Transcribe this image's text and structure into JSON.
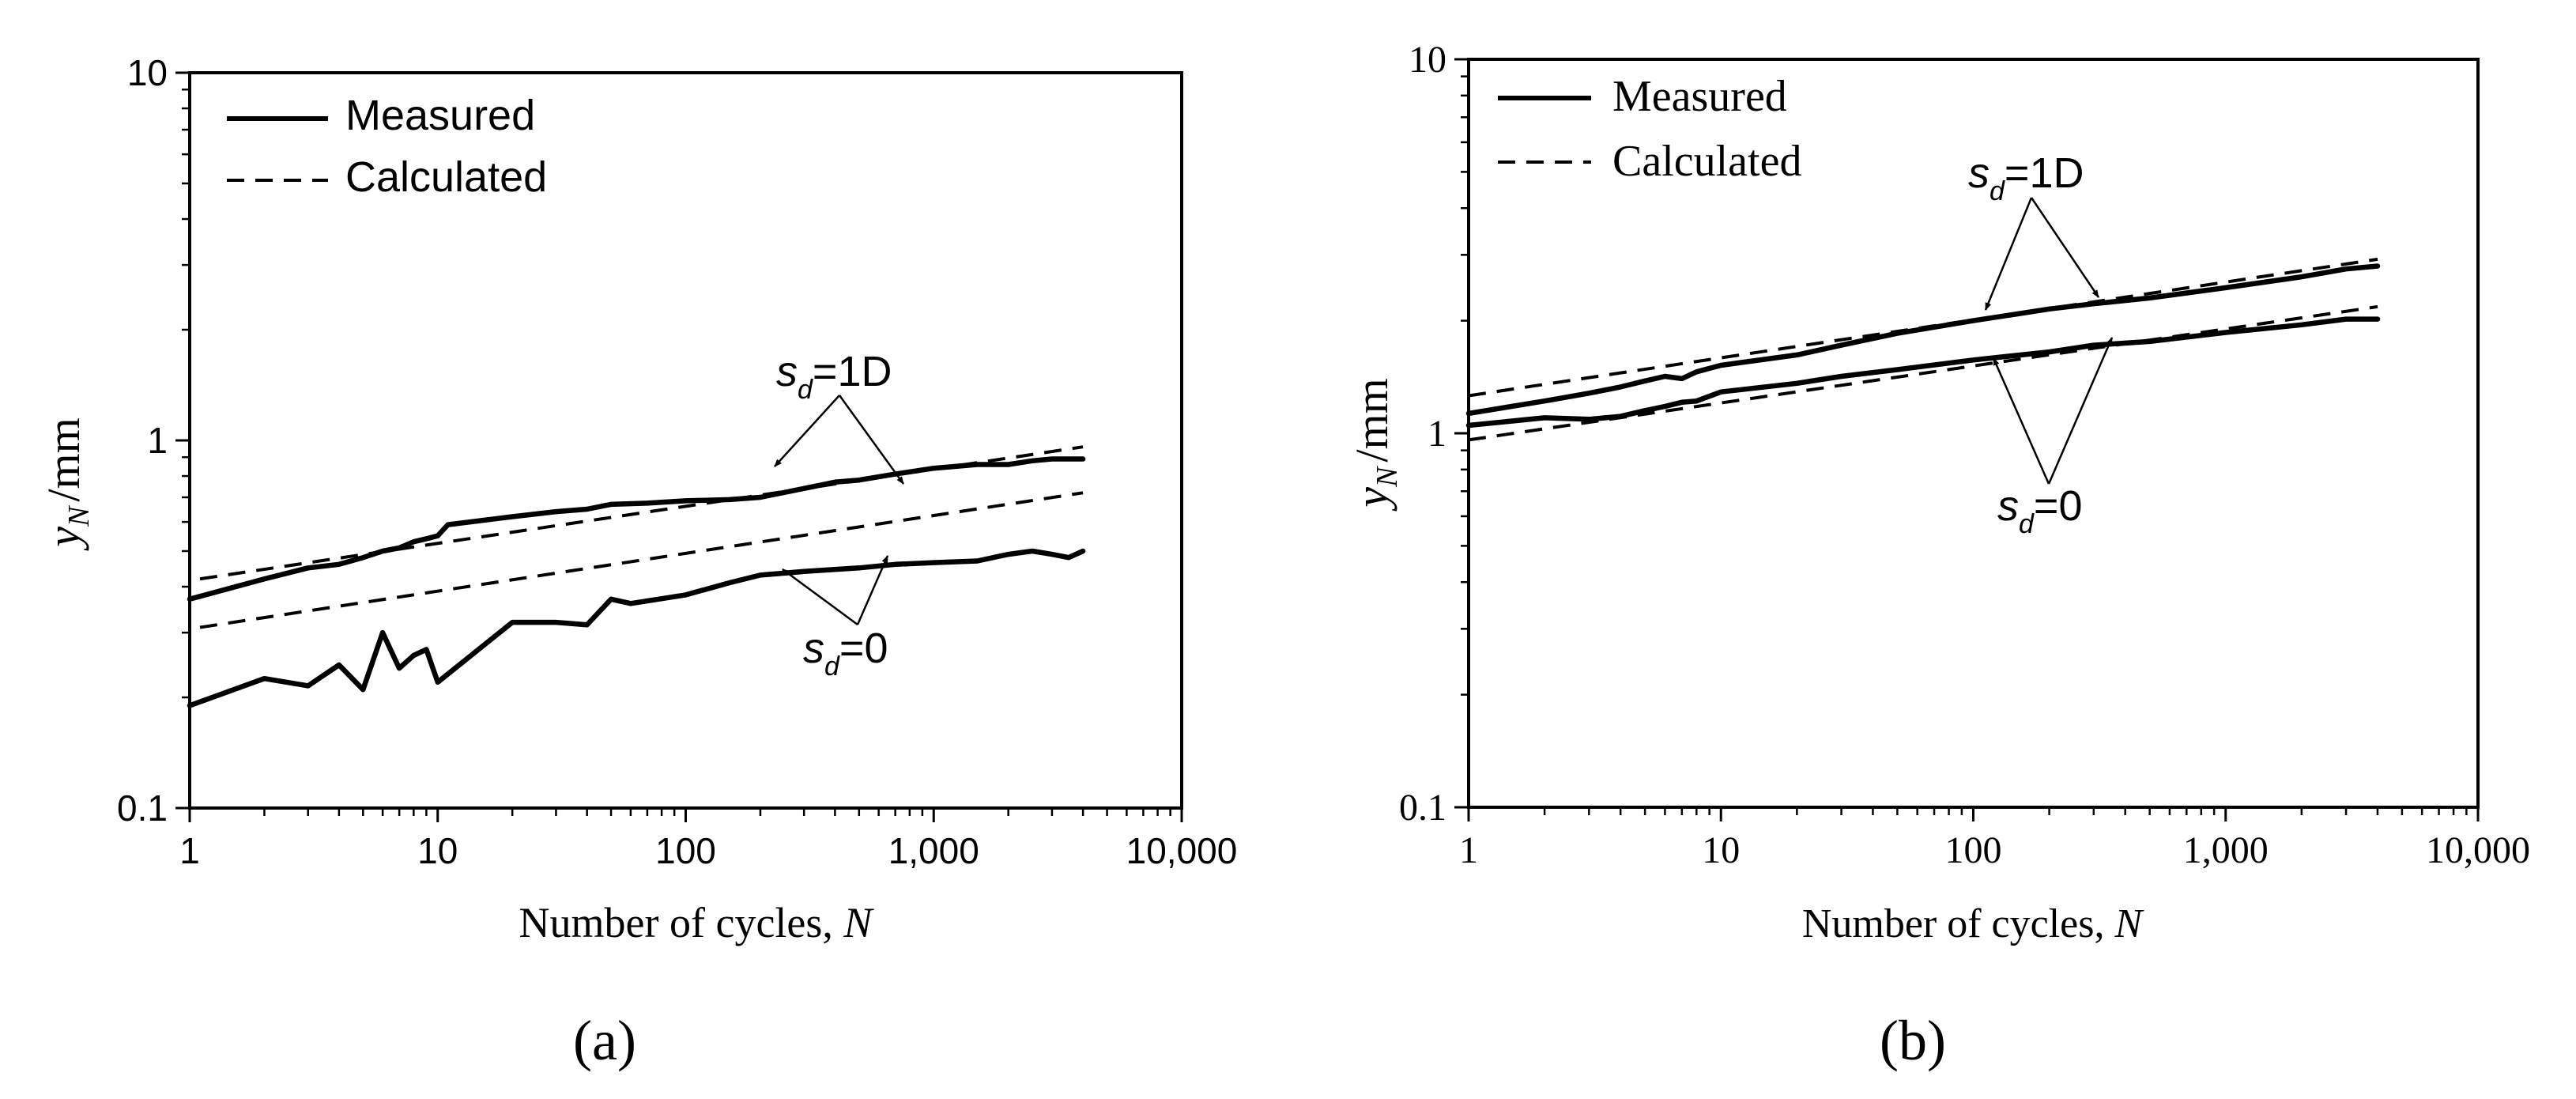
{
  "figure": {
    "panel_labels": [
      "(a)",
      "(b)"
    ]
  },
  "chart_data": [
    {
      "type": "line",
      "panel": "(a)",
      "xscale": "log",
      "yscale": "log",
      "xlim": [
        1,
        10000
      ],
      "ylim": [
        0.1,
        10
      ],
      "xlabel": "Number of cycles,",
      "xlabel_var": "N",
      "ylabel": "y",
      "ylabel_sub": "N",
      "ylabel_unit": "/mm",
      "x_ticks": [
        1,
        10,
        100,
        1000,
        10000
      ],
      "x_tick_labels": [
        "1",
        "10",
        "100",
        "1,000",
        "10,000"
      ],
      "y_ticks": [
        0.1,
        1,
        10
      ],
      "y_tick_labels": [
        "0.1",
        "1",
        "10"
      ],
      "legend": [
        {
          "label": "Measured",
          "style": "solid"
        },
        {
          "label": "Calculated",
          "style": "dashed"
        }
      ],
      "legend_position": "top-left",
      "series": [
        {
          "name": "Measured s_d=1D",
          "style": "solid",
          "x": [
            1,
            2,
            3,
            4,
            5,
            6,
            7,
            8,
            9,
            10,
            11,
            20,
            30,
            40,
            50,
            70,
            100,
            150,
            200,
            300,
            400,
            500,
            700,
            1000,
            1500,
            2000,
            2500,
            3000,
            4000
          ],
          "y": [
            0.37,
            0.42,
            0.45,
            0.46,
            0.48,
            0.5,
            0.51,
            0.53,
            0.54,
            0.55,
            0.59,
            0.62,
            0.64,
            0.65,
            0.67,
            0.675,
            0.685,
            0.69,
            0.7,
            0.74,
            0.77,
            0.78,
            0.81,
            0.84,
            0.86,
            0.86,
            0.88,
            0.89,
            0.89
          ]
        },
        {
          "name": "Calculated s_d=1D",
          "style": "dashed",
          "x": [
            1.1,
            4000
          ],
          "y": [
            0.42,
            0.96
          ]
        },
        {
          "name": "Measured s_d=0",
          "style": "solid",
          "x": [
            1,
            2,
            3,
            4,
            5,
            6,
            7,
            8,
            9,
            10,
            20,
            30,
            40,
            50,
            60,
            100,
            150,
            200,
            300,
            500,
            700,
            1000,
            1500,
            2000,
            2500,
            3000,
            3500,
            4000
          ],
          "y": [
            0.19,
            0.225,
            0.215,
            0.245,
            0.21,
            0.3,
            0.24,
            0.26,
            0.27,
            0.22,
            0.32,
            0.32,
            0.315,
            0.37,
            0.36,
            0.38,
            0.41,
            0.43,
            0.44,
            0.45,
            0.46,
            0.465,
            0.47,
            0.49,
            0.5,
            0.49,
            0.48,
            0.5
          ]
        },
        {
          "name": "Calculated s_d=0",
          "style": "dashed",
          "x": [
            1.1,
            4000
          ],
          "y": [
            0.31,
            0.72
          ]
        }
      ],
      "annotations": [
        {
          "var": "s",
          "sub": "d",
          "value": "=1D"
        },
        {
          "var": "s",
          "sub": "d",
          "value": "=0"
        }
      ]
    },
    {
      "type": "line",
      "panel": "(b)",
      "xscale": "log",
      "yscale": "log",
      "xlim": [
        1,
        10000
      ],
      "ylim": [
        0.1,
        10
      ],
      "xlabel": "Number of cycles,",
      "xlabel_var": "N",
      "ylabel": "y",
      "ylabel_sub": "N",
      "ylabel_unit": "/mm",
      "x_ticks": [
        1,
        10,
        100,
        1000,
        10000
      ],
      "x_tick_labels": [
        "1",
        "10",
        "100",
        "1,000",
        "10,000"
      ],
      "y_ticks": [
        0.1,
        1,
        10
      ],
      "y_tick_labels": [
        "0.1",
        "1",
        "10"
      ],
      "legend": [
        {
          "label": "Measured",
          "style": "solid"
        },
        {
          "label": "Calculated",
          "style": "dashed"
        }
      ],
      "legend_position": "top-left",
      "series": [
        {
          "name": "Measured s_d=1D",
          "style": "solid",
          "x": [
            1,
            2,
            3,
            4,
            5,
            6,
            7,
            8,
            10,
            20,
            30,
            50,
            100,
            200,
            300,
            500,
            1000,
            2000,
            3000,
            4000
          ],
          "y": [
            1.13,
            1.22,
            1.28,
            1.33,
            1.38,
            1.42,
            1.4,
            1.46,
            1.52,
            1.62,
            1.72,
            1.85,
            2.0,
            2.15,
            2.22,
            2.3,
            2.45,
            2.62,
            2.75,
            2.8
          ]
        },
        {
          "name": "Calculated s_d=1D",
          "style": "dashed",
          "x": [
            1,
            4000
          ],
          "y": [
            1.26,
            2.92
          ]
        },
        {
          "name": "Measured s_d=0",
          "style": "solid",
          "x": [
            1,
            2,
            3,
            4,
            5,
            6,
            7,
            8,
            10,
            20,
            30,
            50,
            100,
            200,
            300,
            500,
            1000,
            2000,
            3000,
            4000
          ],
          "y": [
            1.05,
            1.1,
            1.09,
            1.11,
            1.15,
            1.18,
            1.21,
            1.22,
            1.29,
            1.36,
            1.42,
            1.48,
            1.57,
            1.65,
            1.72,
            1.76,
            1.86,
            1.95,
            2.02,
            2.02
          ]
        },
        {
          "name": "Calculated s_d=0",
          "style": "dashed",
          "x": [
            1,
            4000
          ],
          "y": [
            0.96,
            2.18
          ]
        }
      ],
      "annotations": [
        {
          "var": "s",
          "sub": "d",
          "value": "=1D"
        },
        {
          "var": "s",
          "sub": "d",
          "value": "=0"
        }
      ]
    }
  ]
}
